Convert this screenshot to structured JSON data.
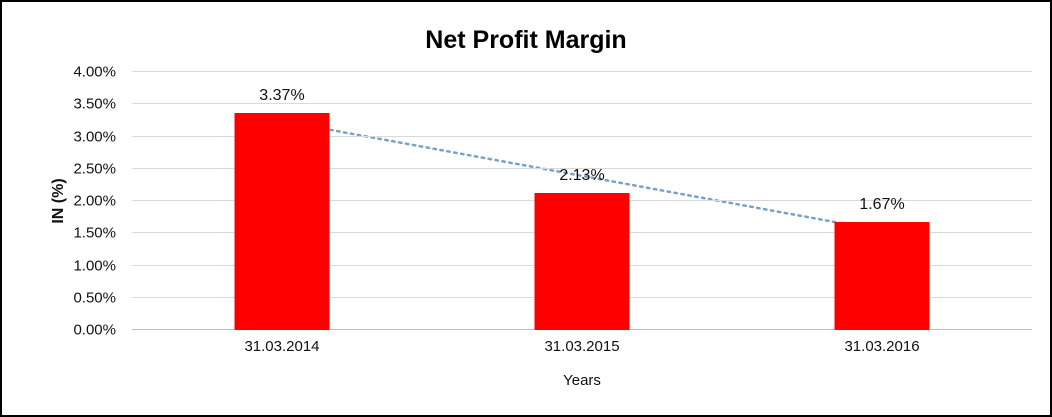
{
  "chart_data": {
    "type": "bar",
    "title": "Net Profit Margin",
    "categories": [
      "31.03.2014",
      "31.03.2015",
      "31.03.2016"
    ],
    "values": [
      3.37,
      2.13,
      1.67
    ],
    "data_labels": [
      "3.37%",
      "2.13%",
      "1.67%"
    ],
    "xlabel": "Years",
    "ylabel": "IN (%)",
    "ylim": [
      0,
      4
    ],
    "ytick_step": 0.5,
    "ytick_labels": [
      "0.00%",
      "0.50%",
      "1.00%",
      "1.50%",
      "2.00%",
      "2.50%",
      "3.00%",
      "3.50%",
      "4.00%"
    ],
    "grid": true,
    "legend": "none",
    "bar_color": "#ff0000",
    "gridline_color": "#d9d9d9",
    "trendline": {
      "type": "linear",
      "style": "dotted",
      "color": "#7aa2c8"
    }
  }
}
